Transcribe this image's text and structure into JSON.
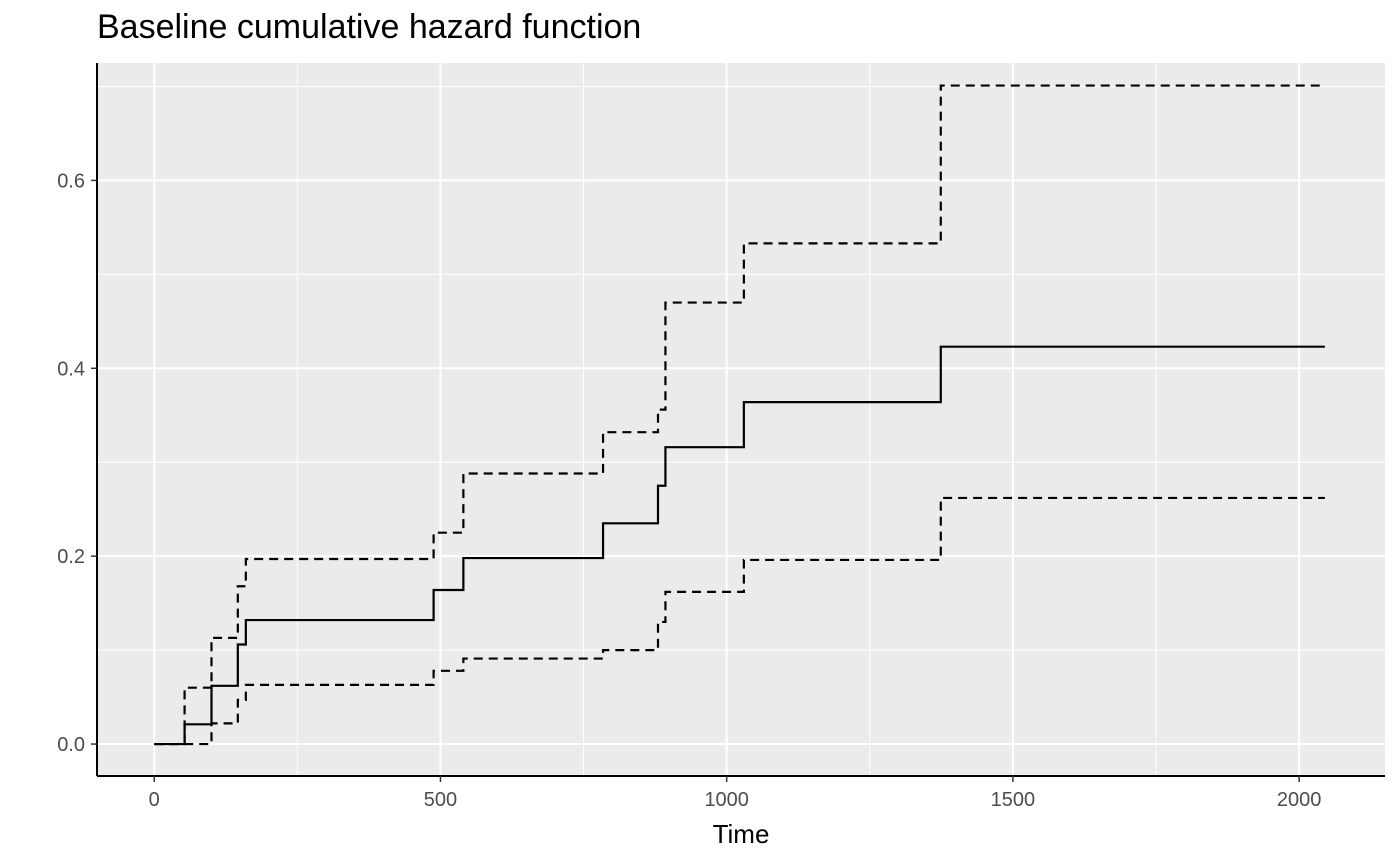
{
  "chart_data": {
    "type": "line",
    "title": "Baseline cumulative hazard function",
    "xlabel": "Time",
    "ylabel": "",
    "xlim": [
      -100,
      2150
    ],
    "ylim": [
      -0.034,
      0.725
    ],
    "x_ticks": [
      0,
      500,
      1000,
      1500,
      2000
    ],
    "y_ticks": [
      0.0,
      0.2,
      0.4,
      0.6
    ],
    "x_tick_labels": [
      "0",
      "500",
      "1000",
      "1500",
      "2000"
    ],
    "y_tick_labels": [
      "0.0",
      "0.2",
      "0.4",
      "0.6"
    ],
    "grid": true,
    "legend": "none",
    "series": [
      {
        "style": "solid",
        "x": [
          0,
          53,
          100,
          146,
          160,
          488,
          540,
          784,
          880,
          893,
          1030,
          1374,
          2045
        ],
        "y": [
          0.0,
          0.021,
          0.062,
          0.106,
          0.132,
          0.164,
          0.198,
          0.235,
          0.275,
          0.316,
          0.364,
          0.423,
          0.423
        ]
      },
      {
        "style": "dashed",
        "x": [
          0,
          53,
          100,
          146,
          160,
          488,
          540,
          784,
          880,
          893,
          1030,
          1374,
          2045
        ],
        "y": [
          0.0,
          0.06,
          0.113,
          0.168,
          0.197,
          0.225,
          0.288,
          0.332,
          0.356,
          0.47,
          0.533,
          0.701,
          0.701
        ]
      },
      {
        "style": "dashed",
        "x": [
          0,
          53,
          100,
          146,
          160,
          488,
          540,
          784,
          880,
          893,
          1030,
          1374,
          2045
        ],
        "y": [
          0.0,
          0.0,
          0.022,
          0.047,
          0.063,
          0.078,
          0.091,
          0.1,
          0.13,
          0.162,
          0.196,
          0.262,
          0.262
        ]
      }
    ],
    "colors": {
      "panel": "#ebebeb",
      "grid": "#ffffff",
      "line": "#000000",
      "tick_text": "#4d4d4d"
    }
  }
}
